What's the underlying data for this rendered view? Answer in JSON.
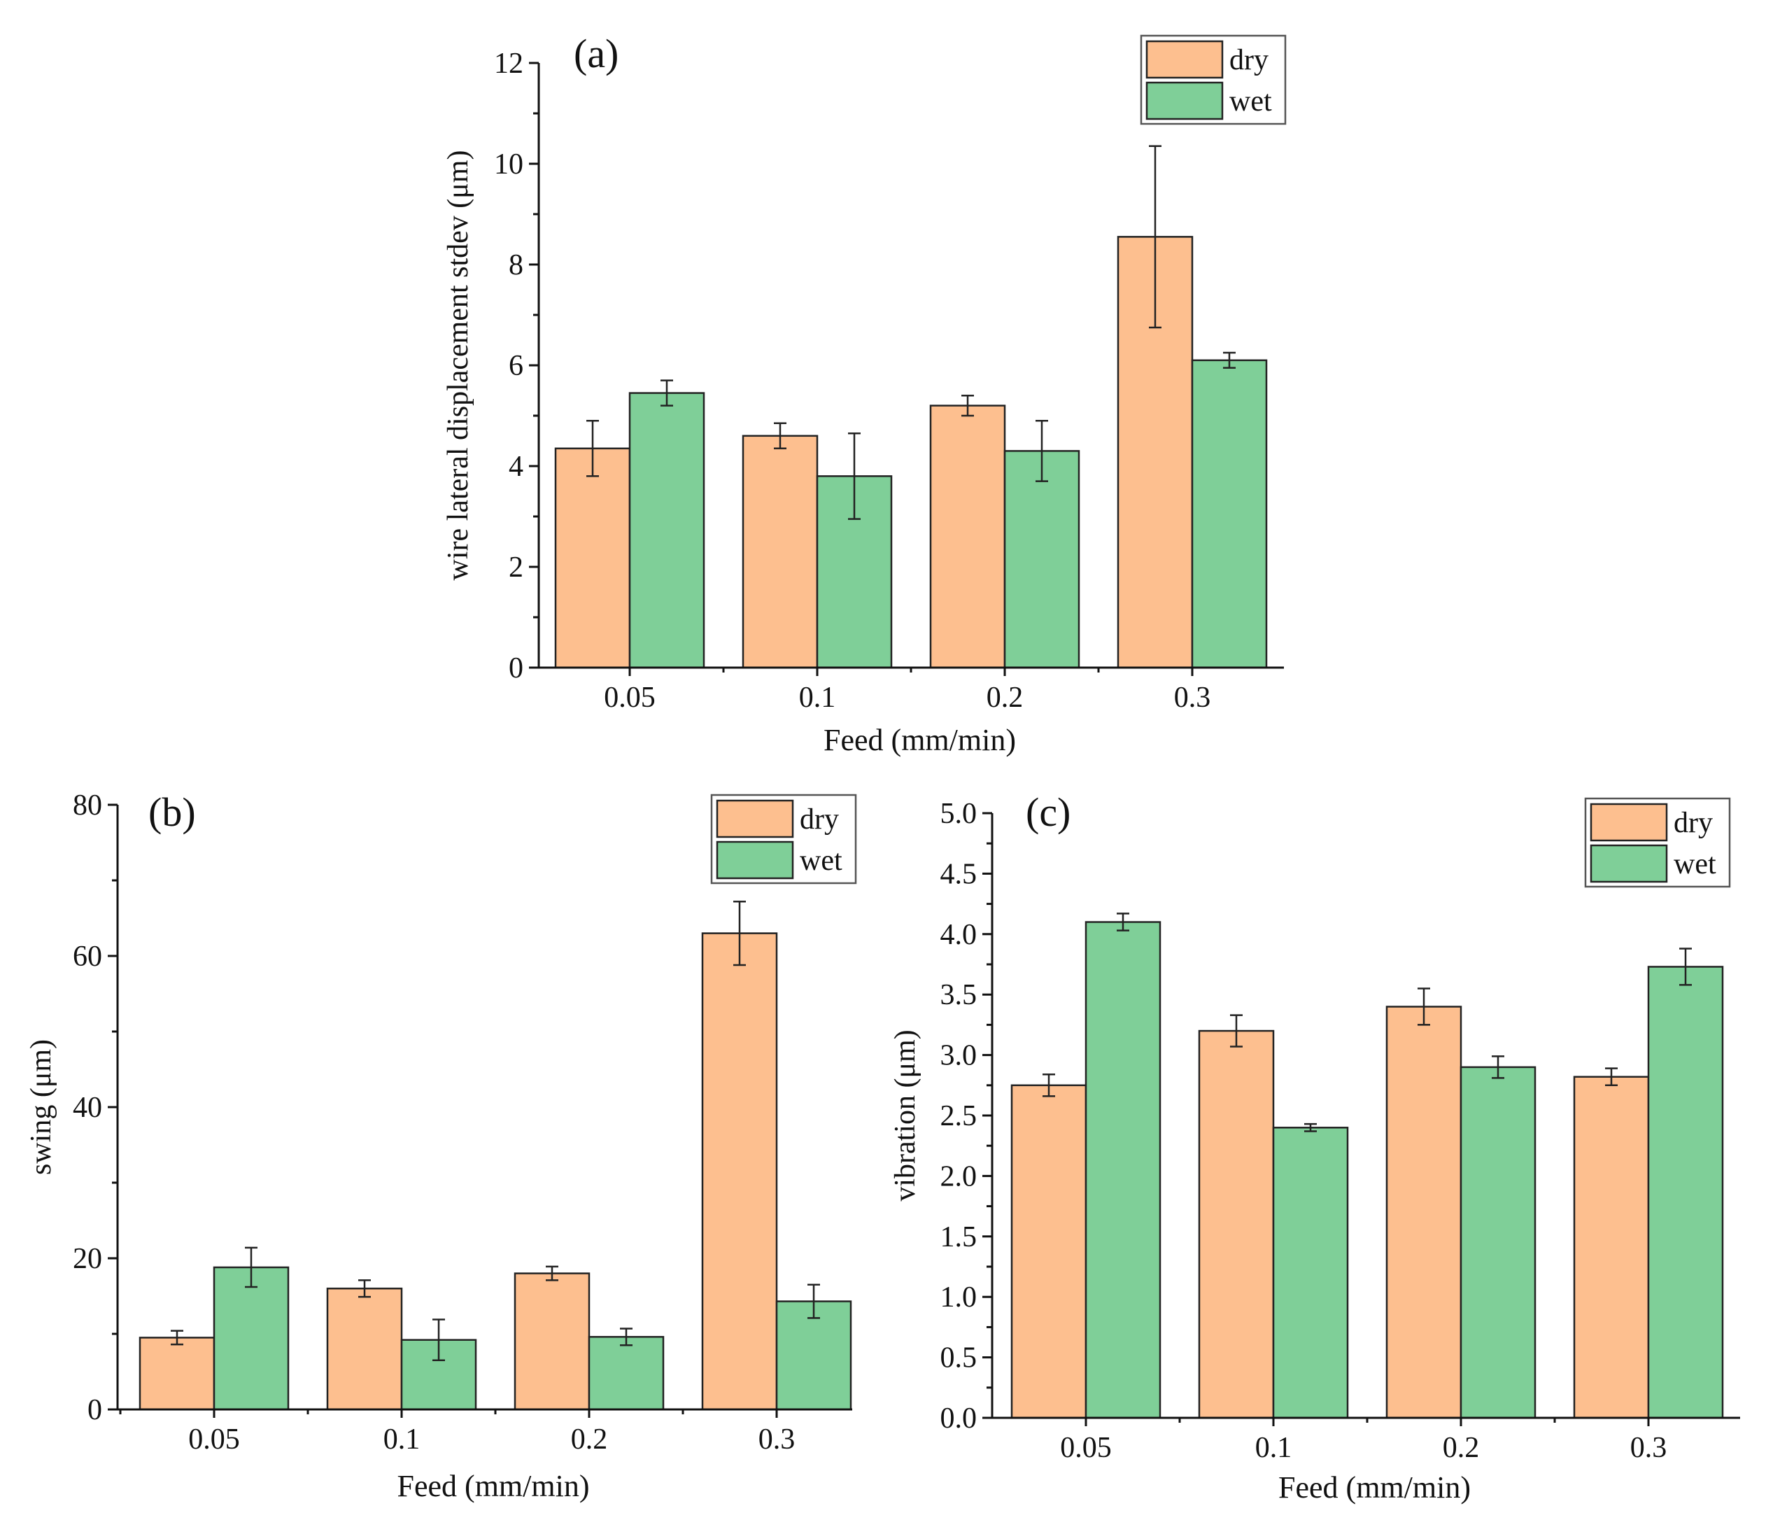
{
  "colors": {
    "dry": "#FDBF8F",
    "wet": "#7FCF98"
  },
  "chart_data": [
    {
      "id": "a",
      "type": "bar",
      "panel_label": "(a)",
      "categories": [
        "0.05",
        "0.1",
        "0.2",
        "0.3"
      ],
      "series": [
        {
          "name": "dry",
          "values": [
            4.35,
            4.6,
            5.2,
            8.55
          ],
          "errors": [
            0.55,
            0.25,
            0.2,
            1.8
          ]
        },
        {
          "name": "wet",
          "values": [
            5.45,
            3.8,
            4.3,
            6.1
          ],
          "errors": [
            0.25,
            0.85,
            0.6,
            0.15
          ]
        }
      ],
      "xlabel": "Feed (mm/min)",
      "ylabel": "wire lateral displacement stdev (μm)",
      "ylim": [
        0,
        12
      ],
      "yticks": [
        0,
        2,
        4,
        6,
        8,
        10,
        12
      ],
      "ytick_labels": [
        "0",
        "2",
        "4",
        "6",
        "8",
        "10",
        "12"
      ],
      "legend_position": "top-right"
    },
    {
      "id": "b",
      "type": "bar",
      "panel_label": "(b)",
      "categories": [
        "0.05",
        "0.1",
        "0.2",
        "0.3"
      ],
      "series": [
        {
          "name": "dry",
          "values": [
            9.5,
            16,
            18,
            63
          ],
          "errors": [
            0.9,
            1.1,
            0.9,
            4.2
          ]
        },
        {
          "name": "wet",
          "values": [
            18.8,
            9.2,
            9.6,
            14.3
          ],
          "errors": [
            2.6,
            2.7,
            1.1,
            2.2
          ]
        }
      ],
      "xlabel": "Feed (mm/min)",
      "ylabel": "swing (μm)",
      "ylim": [
        0,
        80
      ],
      "yticks": [
        0,
        20,
        40,
        60,
        80
      ],
      "ytick_labels": [
        "0",
        "20",
        "40",
        "60",
        "80"
      ],
      "legend_position": "top-right"
    },
    {
      "id": "c",
      "type": "bar",
      "panel_label": "(c)",
      "categories": [
        "0.05",
        "0.1",
        "0.2",
        "0.3"
      ],
      "series": [
        {
          "name": "dry",
          "values": [
            2.75,
            3.2,
            3.4,
            2.82
          ],
          "errors": [
            0.09,
            0.13,
            0.15,
            0.07
          ]
        },
        {
          "name": "wet",
          "values": [
            4.1,
            2.4,
            2.9,
            3.73
          ],
          "errors": [
            0.07,
            0.03,
            0.09,
            0.15
          ]
        }
      ],
      "xlabel": "Feed (mm/min)",
      "ylabel": "vibration (μm)",
      "ylim": [
        0,
        5
      ],
      "yticks": [
        0,
        0.5,
        1,
        1.5,
        2,
        2.5,
        3,
        3.5,
        4,
        4.5,
        5
      ],
      "ytick_labels": [
        "0.0",
        "0.5",
        "1.0",
        "1.5",
        "2.0",
        "2.5",
        "3.0",
        "3.5",
        "4.0",
        "4.5",
        "5.0"
      ],
      "legend_position": "top-right"
    }
  ]
}
